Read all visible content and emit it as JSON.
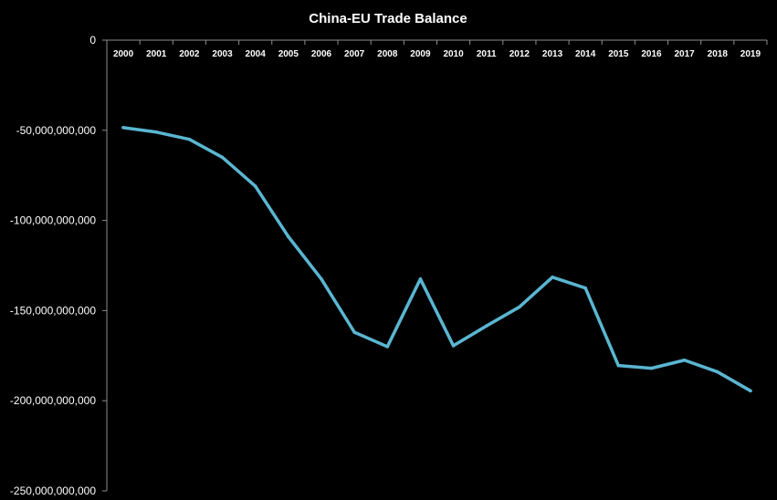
{
  "chart_data": {
    "type": "line",
    "title": "China-EU Trade Balance",
    "xlabel": "",
    "ylabel": "",
    "ylim": [
      -250000000000,
      0
    ],
    "yticks": [
      0,
      -50000000000,
      -100000000000,
      -150000000000,
      -200000000000,
      -250000000000
    ],
    "ytick_labels": [
      "0",
      "-50,000,000,000",
      "-100,000,000,000",
      "-150,000,000,000",
      "-200,000,000,000",
      "-250,000,000,000"
    ],
    "x_axis_position": "top",
    "grid": false,
    "categories": [
      "2000",
      "2001",
      "2002",
      "2003",
      "2004",
      "2005",
      "2006",
      "2007",
      "2008",
      "2009",
      "2010",
      "2011",
      "2012",
      "2013",
      "2014",
      "2015",
      "2016",
      "2017",
      "2018",
      "2019"
    ],
    "series": [
      {
        "color": "#5ab6d1",
        "values": [
          -48500000000,
          -51000000000,
          -55000000000,
          -65000000000,
          -81000000000,
          -109000000000,
          -132500000000,
          -162000000000,
          -170000000000,
          -132500000000,
          -169500000000,
          -158500000000,
          -148000000000,
          -131500000000,
          -137500000000,
          -180500000000,
          -182000000000,
          -177500000000,
          -184000000000,
          -194500000000
        ]
      }
    ]
  }
}
